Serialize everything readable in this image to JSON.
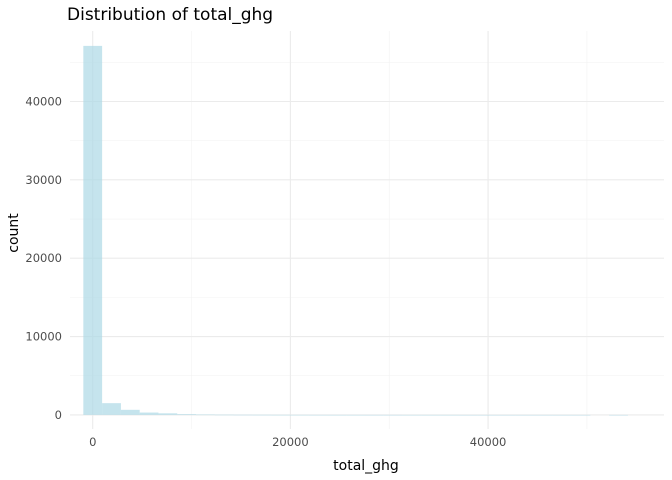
{
  "chart_data": {
    "type": "bar",
    "title": "Distribution of total_ghg",
    "xlabel": "total_ghg",
    "ylabel": "count",
    "xlim": [
      -2300,
      57800
    ],
    "ylim": [
      -1800,
      49000
    ],
    "x_ticks": [
      0,
      20000,
      40000
    ],
    "x_tick_labels": [
      "0",
      "20000",
      "40000"
    ],
    "y_ticks": [
      0,
      10000,
      20000,
      30000,
      40000
    ],
    "y_tick_labels": [
      "0",
      "10000",
      "20000",
      "30000",
      "40000"
    ],
    "x_minor_ticks": [
      10000,
      30000,
      50000
    ],
    "y_minor_ticks": [
      5000,
      15000,
      25000,
      35000,
      45000
    ],
    "grid": true,
    "bar_color": "#add8e6",
    "bar_opacity": 0.7,
    "bins": [
      {
        "x0": -950,
        "x1": 950,
        "count": 47100
      },
      {
        "x0": 950,
        "x1": 2850,
        "count": 1500
      },
      {
        "x0": 2850,
        "x1": 4750,
        "count": 650
      },
      {
        "x0": 4750,
        "x1": 6650,
        "count": 300
      },
      {
        "x0": 6650,
        "x1": 8550,
        "count": 200
      },
      {
        "x0": 8550,
        "x1": 10450,
        "count": 100
      },
      {
        "x0": 10450,
        "x1": 12350,
        "count": 50
      },
      {
        "x0": 12350,
        "x1": 14250,
        "count": 30
      },
      {
        "x0": 14250,
        "x1": 16150,
        "count": 20
      },
      {
        "x0": 16150,
        "x1": 18050,
        "count": 15
      },
      {
        "x0": 18050,
        "x1": 19950,
        "count": 10
      },
      {
        "x0": 19950,
        "x1": 21850,
        "count": 8
      },
      {
        "x0": 21850,
        "x1": 23750,
        "count": 6
      },
      {
        "x0": 23750,
        "x1": 25650,
        "count": 5
      },
      {
        "x0": 25650,
        "x1": 27550,
        "count": 4
      },
      {
        "x0": 27550,
        "x1": 29450,
        "count": 3
      },
      {
        "x0": 29450,
        "x1": 31350,
        "count": 3
      },
      {
        "x0": 31350,
        "x1": 33250,
        "count": 2
      },
      {
        "x0": 33250,
        "x1": 35150,
        "count": 2
      },
      {
        "x0": 35150,
        "x1": 37050,
        "count": 2
      },
      {
        "x0": 37050,
        "x1": 38950,
        "count": 1
      },
      {
        "x0": 38950,
        "x1": 40850,
        "count": 1
      },
      {
        "x0": 40850,
        "x1": 42750,
        "count": 1
      },
      {
        "x0": 42750,
        "x1": 44650,
        "count": 1
      },
      {
        "x0": 44650,
        "x1": 46550,
        "count": 1
      },
      {
        "x0": 46550,
        "x1": 48450,
        "count": 1
      },
      {
        "x0": 48450,
        "x1": 50350,
        "count": 1
      },
      {
        "x0": 50350,
        "x1": 52250,
        "count": 0
      },
      {
        "x0": 52250,
        "x1": 54150,
        "count": 1
      },
      {
        "x0": 54150,
        "x1": 56050,
        "count": 0
      }
    ]
  }
}
